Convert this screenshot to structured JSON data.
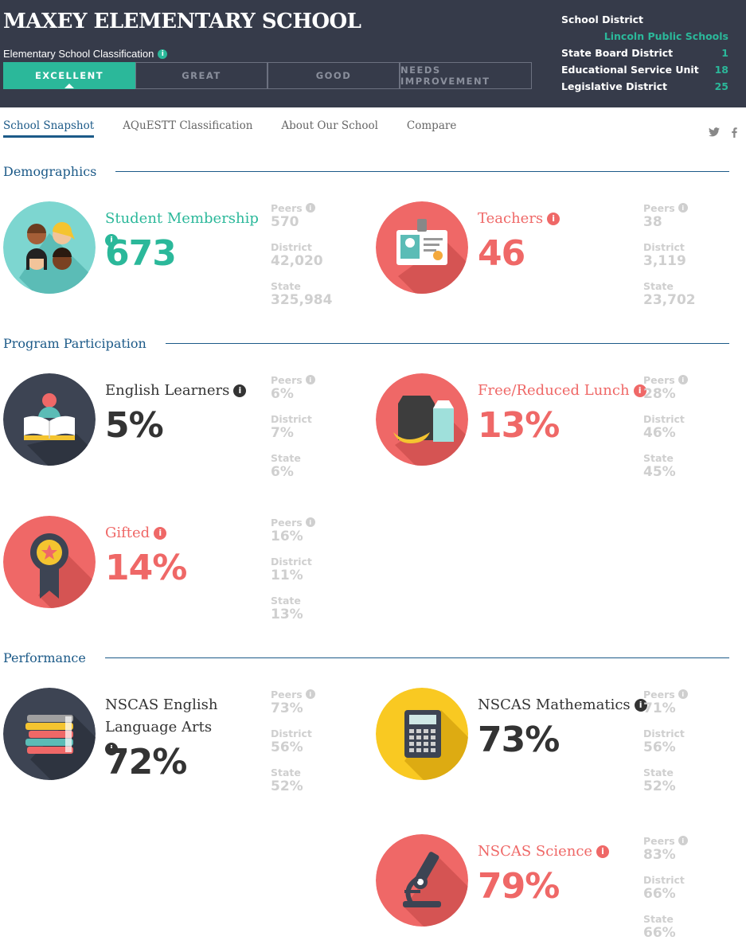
{
  "header": {
    "school_name": "MAXEY ELEMENTARY SCHOOL",
    "classification_label": "Elementary School Classification",
    "tiers": [
      "EXCELLENT",
      "GREAT",
      "GOOD",
      "NEEDS IMPROVEMENT"
    ],
    "active_tier": "EXCELLENT",
    "district": {
      "school_district_label": "School District",
      "school_district_value": "Lincoln Public Schools",
      "state_board_label": "State Board District",
      "state_board_value": "1",
      "esu_label": "Educational Service Unit",
      "esu_value": "18",
      "legislative_label": "Legislative District",
      "legislative_value": "25"
    }
  },
  "tabs": [
    "School Snapshot",
    "AQuESTT Classification",
    "About Our School",
    "Compare"
  ],
  "social": {
    "twitter": "twitter-icon",
    "facebook": "facebook-icon"
  },
  "sections": {
    "demographics": "Demographics",
    "program": "Program Participation",
    "performance": "Performance"
  },
  "compare_labels": {
    "peers": "Peers",
    "district": "District",
    "state": "State"
  },
  "metrics": {
    "membership": {
      "label": "Student Membership",
      "value": "673",
      "peers": "570",
      "district": "42,020",
      "state": "325,984"
    },
    "teachers": {
      "label": "Teachers",
      "value": "46",
      "peers": "38",
      "district": "3,119",
      "state": "23,702"
    },
    "ell": {
      "label": "English Learners",
      "value": "5%",
      "peers": "6%",
      "district": "7%",
      "state": "6%"
    },
    "lunch": {
      "label": "Free/Reduced Lunch",
      "value": "13%",
      "peers": "28%",
      "district": "46%",
      "state": "45%"
    },
    "gifted": {
      "label": "Gifted",
      "value": "14%",
      "peers": "16%",
      "district": "11%",
      "state": "13%"
    },
    "ela": {
      "label": "NSCAS English Language Arts",
      "value": "72%",
      "peers": "73%",
      "district": "56%",
      "state": "52%"
    },
    "math": {
      "label": "NSCAS Mathematics",
      "value": "73%",
      "peers": "71%",
      "district": "56%",
      "state": "52%"
    },
    "science": {
      "label": "NSCAS Science",
      "value": "79%",
      "peers": "83%",
      "district": "66%",
      "state": "66%"
    }
  },
  "colors": {
    "header_bg": "#363b4a",
    "teal": "#2bb89a",
    "red": "#ef6867",
    "navy": "#1c5a88",
    "yellow": "#f9c922",
    "dark_icon": "#3d4453",
    "muted": "#cfcfcf"
  }
}
